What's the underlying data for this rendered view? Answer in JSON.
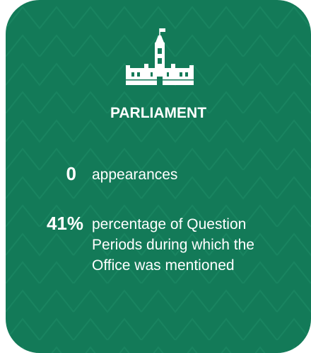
{
  "title": "PARLIAMENT",
  "stats": [
    {
      "value": "0",
      "label": "appearances"
    },
    {
      "value": "41%",
      "label": "percentage of Question Periods during which the Office was mentioned"
    }
  ]
}
